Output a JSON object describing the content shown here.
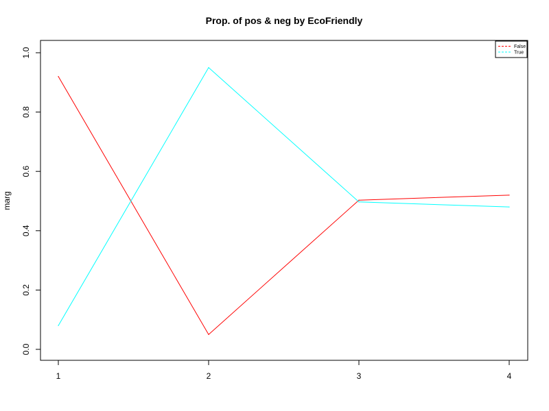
{
  "chart_data": {
    "type": "line",
    "title": "Prop. of pos & neg by EcoFriendly",
    "xlabel": "",
    "ylabel": "marg",
    "x": [
      1,
      2,
      3,
      4
    ],
    "xticks": [
      "1",
      "2",
      "3",
      "4"
    ],
    "yticks": [
      "0.0",
      "0.2",
      "0.4",
      "0.6",
      "0.8",
      "1.0"
    ],
    "ylim": [
      0,
      1
    ],
    "grid": false,
    "legend_position": "top-right",
    "series": [
      {
        "name": "False",
        "color": "#ff0000",
        "values": [
          0.92,
          0.05,
          0.503,
          0.52
        ]
      },
      {
        "name": "True",
        "color": "#00ffff",
        "values": [
          0.08,
          0.95,
          0.497,
          0.48
        ]
      }
    ]
  }
}
